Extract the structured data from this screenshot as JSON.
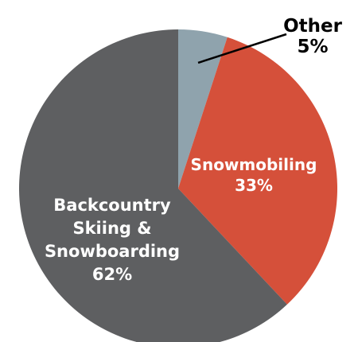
{
  "chart_data": {
    "type": "pie",
    "slices": [
      {
        "name": "Other",
        "value": 5,
        "label_lines": [
          "Other"
        ],
        "value_label": "5%",
        "color": "#8FA3AD"
      },
      {
        "name": "Snowmobiling",
        "value": 33,
        "label_lines": [
          "Snowmobiling"
        ],
        "value_label": "33%",
        "color": "#D5503A"
      },
      {
        "name": "Backcountry Skiing & Snowboarding",
        "value": 62,
        "label_lines": [
          "Backcountry",
          "Skiing &",
          "Snowboarding"
        ],
        "value_label": "62%",
        "color": "#5E5F61"
      }
    ],
    "label_colors": {
      "inside": "#ffffff",
      "outside": "#000000"
    }
  }
}
